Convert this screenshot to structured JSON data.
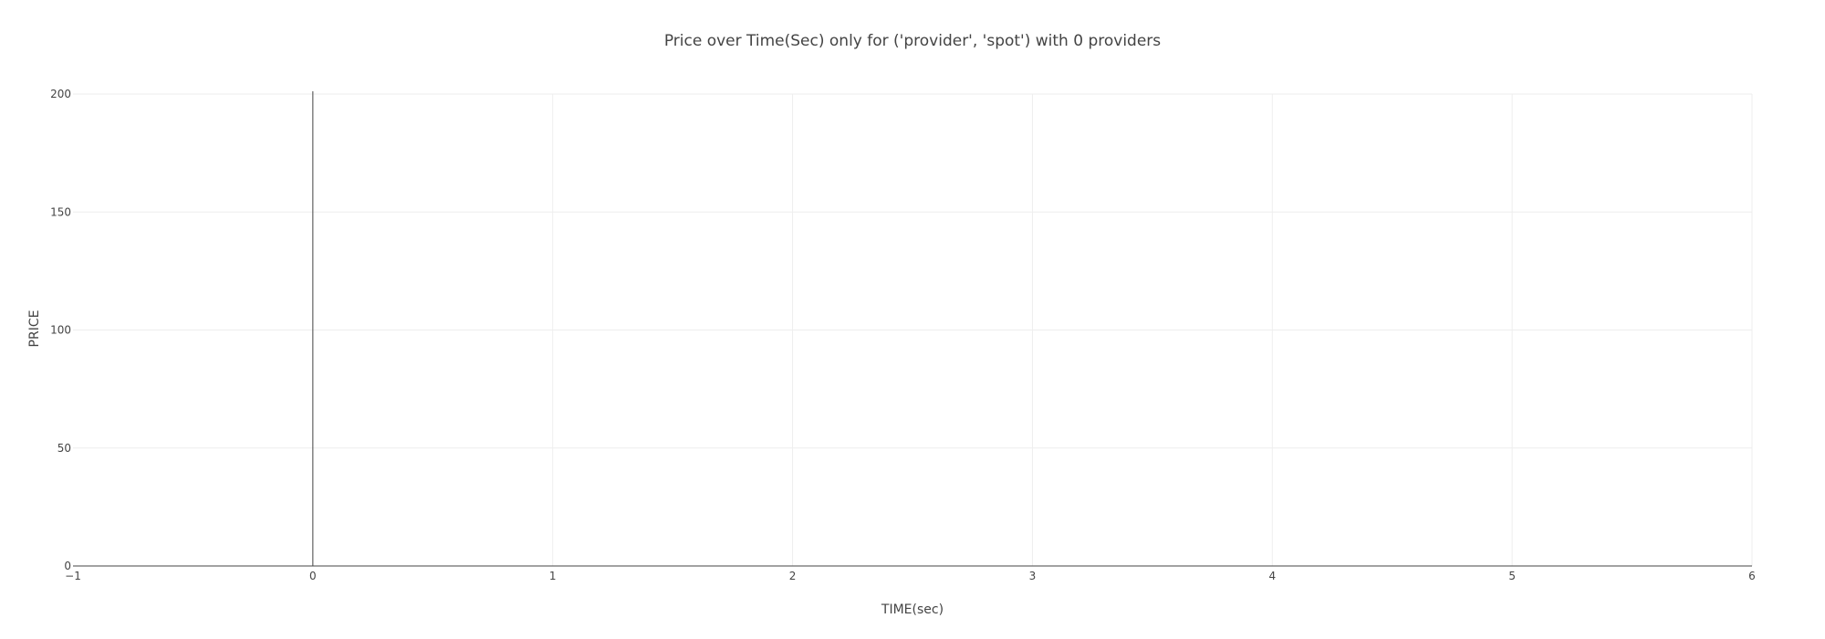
{
  "chart_data": {
    "type": "line",
    "title": "Price over Time(Sec) only for ('provider', 'spot') with 0 providers",
    "xlabel": "TIME(sec)",
    "ylabel": "PRICE",
    "xlim": [
      -1,
      6
    ],
    "ylim": [
      0,
      200
    ],
    "x_ticks": [
      -1,
      0,
      1,
      2,
      3,
      4,
      5,
      6
    ],
    "x_tick_labels": [
      "−1",
      "0",
      "1",
      "2",
      "3",
      "4",
      "5",
      "6"
    ],
    "y_ticks": [
      0,
      50,
      100,
      150,
      200
    ],
    "y_tick_labels": [
      "0",
      "50",
      "100",
      "150",
      "200"
    ],
    "grid": true,
    "series": [],
    "colors": {
      "grid": "#eeeeee",
      "axis": "#444444",
      "zeroline": "#444444"
    }
  }
}
